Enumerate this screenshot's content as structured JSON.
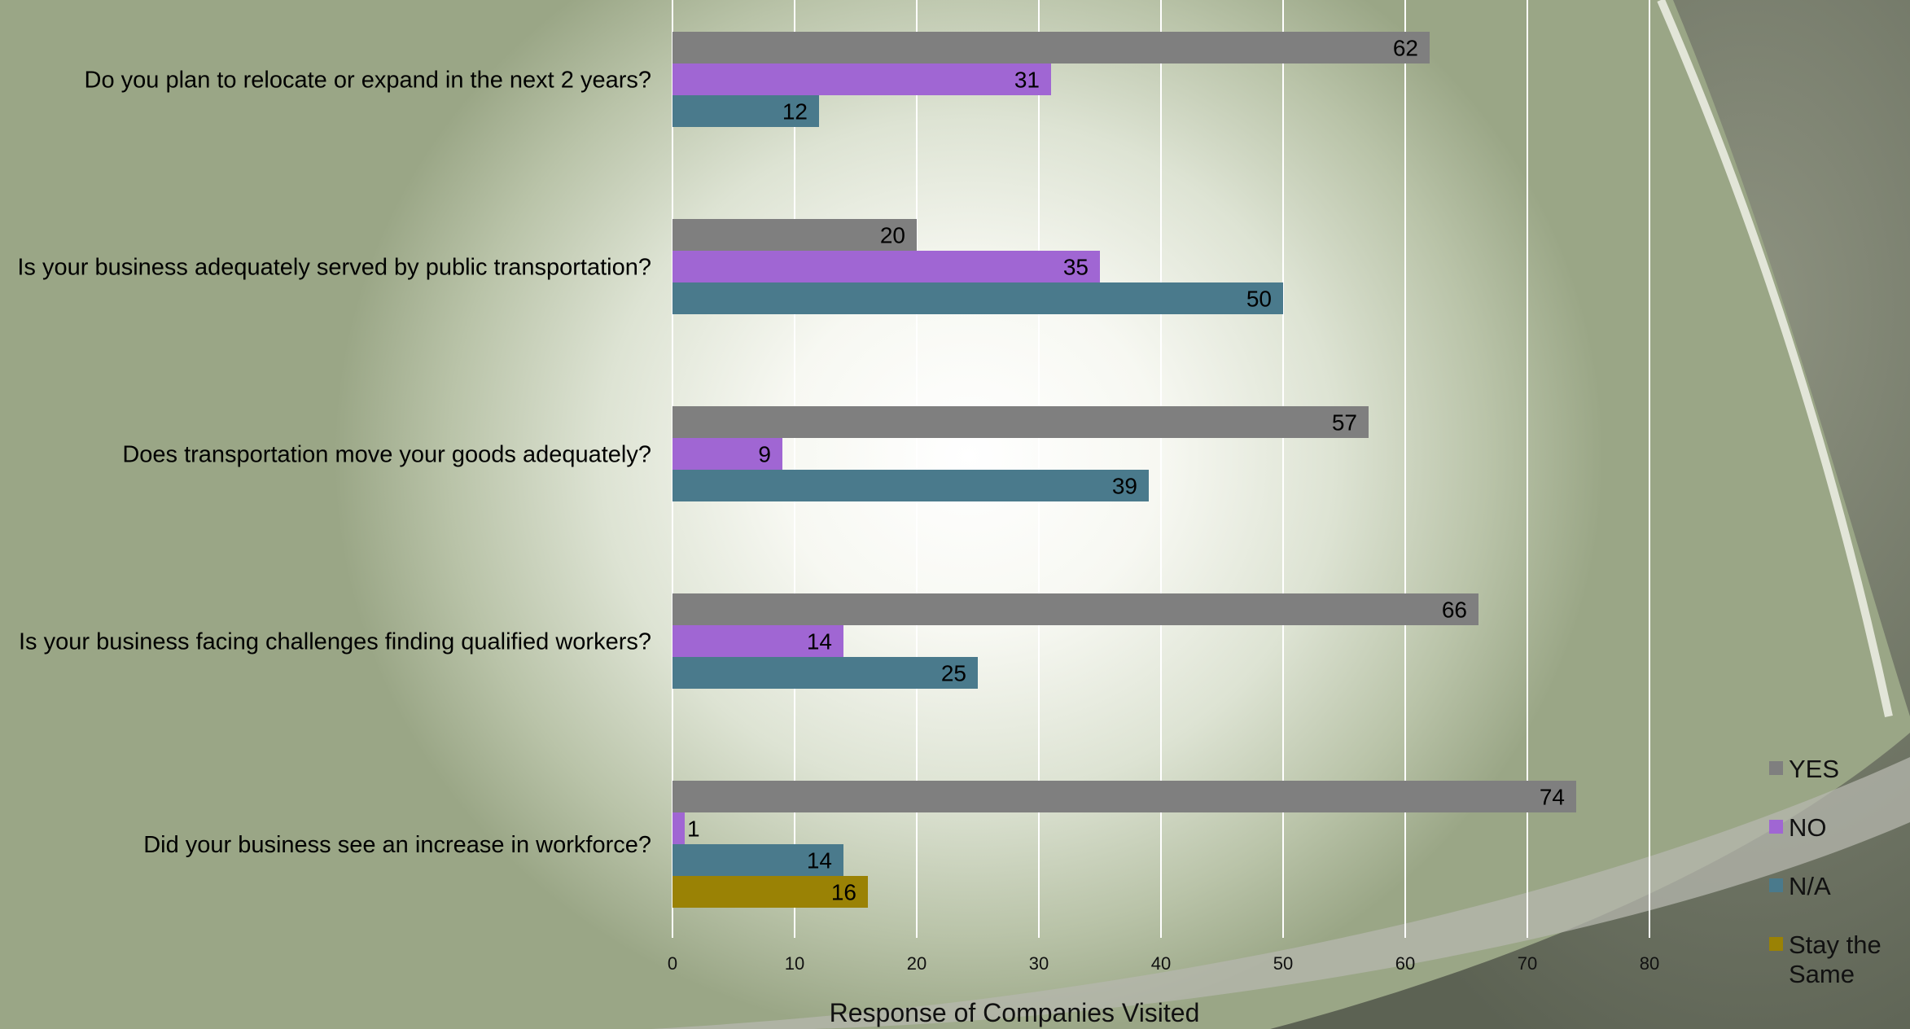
{
  "chart_data": {
    "type": "bar",
    "orientation": "horizontal",
    "categories": [
      "Do you plan to relocate or expand in the next 2 years?",
      "Is your business adequately served by public transportation?",
      "Does transportation move your goods adequately?",
      "Is your business facing challenges finding qualified workers?",
      "Did your business see an increase in workforce?"
    ],
    "series": [
      {
        "name": "YES",
        "color": "#7f7f7f",
        "values": [
          62,
          20,
          57,
          66,
          74
        ]
      },
      {
        "name": "NO",
        "color": "#a066d3",
        "values": [
          31,
          35,
          9,
          14,
          1
        ]
      },
      {
        "name": "N/A",
        "color": "#4a7a8c",
        "values": [
          12,
          50,
          39,
          25,
          14
        ]
      },
      {
        "name": "Stay the Same",
        "color": "#9a8205",
        "values": [
          null,
          null,
          null,
          null,
          16
        ]
      }
    ],
    "xlabel": "Response of Companies Visited",
    "ylabel": "",
    "xlim": [
      0,
      80
    ],
    "xticks": [
      0,
      10,
      20,
      30,
      40,
      50,
      60,
      70,
      80
    ],
    "grid": true,
    "data_labels": true,
    "legend_position": "right"
  }
}
